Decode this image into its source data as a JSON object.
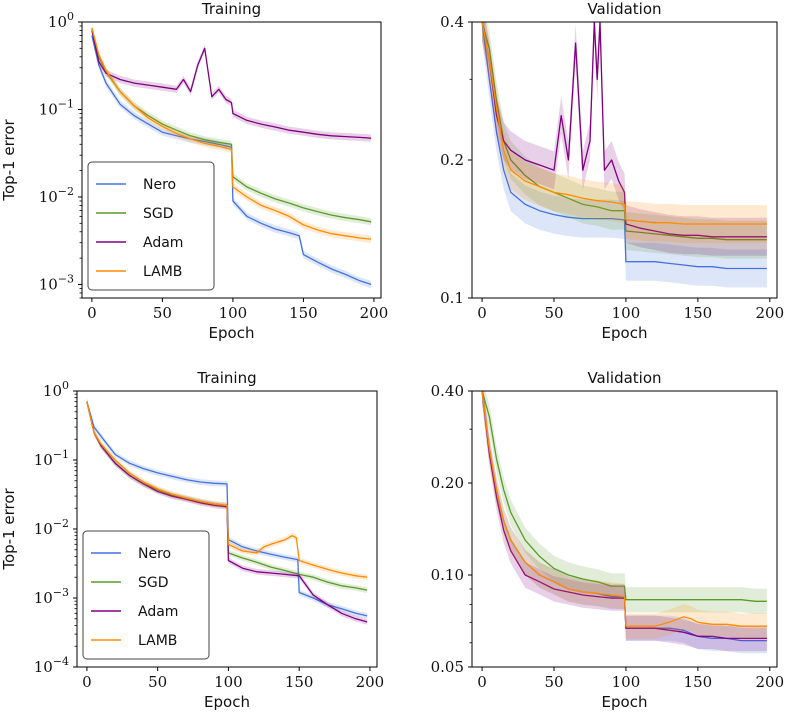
{
  "colors": {
    "Nero": "#4472e0",
    "SGD": "#5a9a2a",
    "Adam": "#800080",
    "LAMB": "#ff8c00"
  },
  "legend_entries": [
    "Nero",
    "SGD",
    "Adam",
    "LAMB"
  ],
  "chart_data": [
    {
      "type": "line",
      "title": "Training",
      "xlabel": "Epoch",
      "ylabel": "Top-1 error",
      "yscale": "log",
      "xlim": [
        -7,
        205
      ],
      "ylim": [
        0.0007,
        1.0
      ],
      "xticks": [
        0,
        50,
        100,
        150,
        200
      ],
      "xtick_labels": [
        "0",
        "50",
        "100",
        "150",
        "200"
      ],
      "yticks": [
        0.001,
        0.01,
        0.1,
        1.0
      ],
      "ytick_labels": [
        {
          "base": "10",
          "exp": "−3"
        },
        {
          "base": "10",
          "exp": "−2"
        },
        {
          "base": "10",
          "exp": "−1"
        },
        {
          "base": "10",
          "exp": "0"
        }
      ],
      "legend": "lower-left",
      "series": [
        {
          "name": "Nero",
          "x": [
            0,
            5,
            10,
            20,
            30,
            40,
            50,
            60,
            70,
            80,
            90,
            99,
            100,
            110,
            120,
            130,
            140,
            147,
            150,
            160,
            170,
            180,
            190,
            198
          ],
          "y": [
            0.7,
            0.32,
            0.2,
            0.115,
            0.085,
            0.068,
            0.055,
            0.05,
            0.046,
            0.043,
            0.04,
            0.037,
            0.009,
            0.006,
            0.005,
            0.0043,
            0.0039,
            0.0036,
            0.0022,
            0.0018,
            0.0015,
            0.0013,
            0.0011,
            0.001
          ]
        },
        {
          "name": "SGD",
          "x": [
            0,
            5,
            10,
            20,
            30,
            40,
            50,
            60,
            70,
            80,
            90,
            99,
            100,
            110,
            120,
            130,
            140,
            150,
            160,
            170,
            180,
            190,
            198
          ],
          "y": [
            0.85,
            0.4,
            0.27,
            0.16,
            0.11,
            0.085,
            0.068,
            0.058,
            0.05,
            0.045,
            0.042,
            0.04,
            0.017,
            0.013,
            0.011,
            0.0095,
            0.0085,
            0.0075,
            0.0068,
            0.0062,
            0.0058,
            0.0055,
            0.0052
          ]
        },
        {
          "name": "Adam",
          "x": [
            0,
            5,
            10,
            20,
            30,
            40,
            50,
            60,
            65,
            70,
            75,
            80,
            85,
            90,
            95,
            99,
            100,
            110,
            120,
            130,
            140,
            150,
            160,
            170,
            180,
            190,
            198
          ],
          "y": [
            0.8,
            0.35,
            0.26,
            0.22,
            0.2,
            0.19,
            0.18,
            0.17,
            0.22,
            0.16,
            0.32,
            0.5,
            0.14,
            0.17,
            0.13,
            0.12,
            0.09,
            0.075,
            0.068,
            0.063,
            0.058,
            0.055,
            0.052,
            0.05,
            0.049,
            0.048,
            0.047
          ]
        },
        {
          "name": "LAMB",
          "x": [
            0,
            5,
            10,
            20,
            30,
            40,
            50,
            60,
            70,
            80,
            90,
            99,
            100,
            110,
            120,
            130,
            140,
            150,
            160,
            170,
            180,
            190,
            198
          ],
          "y": [
            0.85,
            0.42,
            0.28,
            0.16,
            0.11,
            0.08,
            0.064,
            0.053,
            0.046,
            0.041,
            0.038,
            0.035,
            0.013,
            0.01,
            0.008,
            0.007,
            0.006,
            0.0048,
            0.0042,
            0.0038,
            0.0036,
            0.0034,
            0.0033
          ]
        }
      ]
    },
    {
      "type": "line",
      "title": "Validation",
      "xlabel": "Epoch",
      "ylabel": "",
      "yscale": "log",
      "xlim": [
        -7,
        205
      ],
      "ylim": [
        0.1,
        0.4
      ],
      "xticks": [
        0,
        50,
        100,
        150,
        200
      ],
      "xtick_labels": [
        "0",
        "50",
        "100",
        "150",
        "200"
      ],
      "yticks": [
        0.1,
        0.2,
        0.4
      ],
      "ytick_labels": [
        "0.1",
        "0.2",
        "0.4"
      ],
      "series": [
        {
          "name": "Nero",
          "x": [
            0,
            5,
            10,
            15,
            20,
            30,
            40,
            50,
            60,
            70,
            80,
            90,
            99,
            100,
            110,
            120,
            130,
            140,
            150,
            160,
            170,
            180,
            190,
            198
          ],
          "y": [
            0.4,
            0.3,
            0.23,
            0.19,
            0.17,
            0.16,
            0.155,
            0.152,
            0.15,
            0.149,
            0.149,
            0.149,
            0.148,
            0.12,
            0.12,
            0.12,
            0.119,
            0.118,
            0.117,
            0.117,
            0.116,
            0.116,
            0.116,
            0.116
          ]
        },
        {
          "name": "SGD",
          "x": [
            0,
            5,
            10,
            15,
            20,
            30,
            40,
            50,
            60,
            70,
            80,
            90,
            99,
            100,
            110,
            120,
            130,
            140,
            150,
            160,
            170,
            180,
            190,
            198
          ],
          "y": [
            0.4,
            0.35,
            0.27,
            0.22,
            0.2,
            0.185,
            0.175,
            0.17,
            0.165,
            0.16,
            0.158,
            0.155,
            0.155,
            0.14,
            0.139,
            0.138,
            0.137,
            0.136,
            0.135,
            0.135,
            0.134,
            0.134,
            0.134,
            0.134
          ]
        },
        {
          "name": "Adam",
          "x": [
            0,
            5,
            10,
            15,
            20,
            30,
            40,
            50,
            55,
            60,
            65,
            70,
            75,
            78,
            80,
            82,
            85,
            90,
            95,
            99,
            100,
            110,
            120,
            130,
            140,
            150,
            160,
            170,
            180,
            190,
            198
          ],
          "y": [
            0.4,
            0.33,
            0.25,
            0.22,
            0.21,
            0.2,
            0.195,
            0.19,
            0.25,
            0.2,
            0.36,
            0.19,
            0.22,
            0.4,
            0.3,
            0.4,
            0.19,
            0.2,
            0.18,
            0.17,
            0.145,
            0.142,
            0.14,
            0.138,
            0.137,
            0.137,
            0.136,
            0.136,
            0.136,
            0.136,
            0.136
          ]
        },
        {
          "name": "LAMB",
          "x": [
            0,
            5,
            10,
            15,
            20,
            30,
            40,
            50,
            60,
            70,
            80,
            90,
            99,
            100,
            110,
            120,
            130,
            140,
            150,
            160,
            170,
            180,
            190,
            198
          ],
          "y": [
            0.4,
            0.33,
            0.26,
            0.21,
            0.19,
            0.18,
            0.175,
            0.17,
            0.168,
            0.165,
            0.163,
            0.162,
            0.16,
            0.148,
            0.147,
            0.146,
            0.146,
            0.145,
            0.145,
            0.145,
            0.145,
            0.145,
            0.145,
            0.145
          ]
        }
      ]
    },
    {
      "type": "line",
      "title": "Training",
      "xlabel": "Epoch",
      "ylabel": "Top-1 error",
      "yscale": "log",
      "xlim": [
        -7,
        205
      ],
      "ylim": [
        0.0001,
        1.0
      ],
      "xticks": [
        0,
        50,
        100,
        150,
        200
      ],
      "xtick_labels": [
        "0",
        "50",
        "100",
        "150",
        "200"
      ],
      "yticks": [
        0.0001,
        0.001,
        0.01,
        0.1,
        1.0
      ],
      "ytick_labels": [
        {
          "base": "10",
          "exp": "−4"
        },
        {
          "base": "10",
          "exp": "−3"
        },
        {
          "base": "10",
          "exp": "−2"
        },
        {
          "base": "10",
          "exp": "−1"
        },
        {
          "base": "10",
          "exp": "0"
        }
      ],
      "legend": "lower-left",
      "series": [
        {
          "name": "Nero",
          "x": [
            0,
            5,
            10,
            20,
            30,
            40,
            50,
            60,
            70,
            80,
            90,
            99,
            100,
            110,
            120,
            130,
            140,
            149,
            150,
            160,
            170,
            180,
            190,
            198
          ],
          "y": [
            0.7,
            0.3,
            0.22,
            0.12,
            0.09,
            0.075,
            0.065,
            0.058,
            0.052,
            0.048,
            0.046,
            0.045,
            0.007,
            0.0055,
            0.0048,
            0.0043,
            0.0039,
            0.0036,
            0.0012,
            0.001,
            0.0008,
            0.0007,
            0.0006,
            0.00055
          ]
        },
        {
          "name": "SGD",
          "x": [
            0,
            5,
            10,
            20,
            30,
            40,
            50,
            60,
            70,
            80,
            90,
            99,
            100,
            110,
            120,
            130,
            140,
            150,
            160,
            170,
            180,
            190,
            198
          ],
          "y": [
            0.7,
            0.25,
            0.16,
            0.09,
            0.06,
            0.045,
            0.037,
            0.031,
            0.028,
            0.025,
            0.023,
            0.022,
            0.0045,
            0.0038,
            0.0033,
            0.0028,
            0.0025,
            0.0022,
            0.002,
            0.0017,
            0.0015,
            0.0014,
            0.0013
          ]
        },
        {
          "name": "Adam",
          "x": [
            0,
            5,
            10,
            20,
            30,
            40,
            50,
            60,
            70,
            80,
            90,
            99,
            100,
            110,
            120,
            130,
            140,
            150,
            160,
            170,
            180,
            190,
            198
          ],
          "y": [
            0.7,
            0.25,
            0.16,
            0.09,
            0.06,
            0.045,
            0.035,
            0.03,
            0.027,
            0.024,
            0.022,
            0.021,
            0.0035,
            0.0027,
            0.0024,
            0.0023,
            0.0022,
            0.0021,
            0.0011,
            0.0008,
            0.0006,
            0.0005,
            0.00045
          ]
        },
        {
          "name": "LAMB",
          "x": [
            0,
            5,
            10,
            20,
            30,
            40,
            50,
            60,
            70,
            80,
            90,
            99,
            100,
            110,
            120,
            125,
            130,
            140,
            145,
            148,
            150,
            160,
            170,
            180,
            190,
            198
          ],
          "y": [
            0.7,
            0.25,
            0.17,
            0.1,
            0.065,
            0.048,
            0.038,
            0.032,
            0.028,
            0.025,
            0.023,
            0.022,
            0.006,
            0.0048,
            0.0045,
            0.0055,
            0.006,
            0.007,
            0.008,
            0.0075,
            0.0035,
            0.003,
            0.0026,
            0.0023,
            0.0021,
            0.002
          ]
        }
      ]
    },
    {
      "type": "line",
      "title": "Validation",
      "xlabel": "Epoch",
      "ylabel": "",
      "yscale": "log",
      "xlim": [
        -7,
        205
      ],
      "ylim": [
        0.05,
        0.4
      ],
      "xticks": [
        0,
        50,
        100,
        150,
        200
      ],
      "xtick_labels": [
        "0",
        "50",
        "100",
        "150",
        "200"
      ],
      "yticks": [
        0.05,
        0.1,
        0.2,
        0.4
      ],
      "ytick_labels": [
        "0.05",
        "0.10",
        "0.20",
        "0.40"
      ],
      "series": [
        {
          "name": "Nero",
          "x": [
            0,
            5,
            10,
            15,
            20,
            30,
            40,
            50,
            60,
            70,
            80,
            90,
            99,
            100,
            110,
            120,
            130,
            140,
            150,
            160,
            170,
            180,
            190,
            198
          ],
          "y": [
            0.4,
            0.26,
            0.19,
            0.15,
            0.13,
            0.11,
            0.1,
            0.095,
            0.09,
            0.088,
            0.087,
            0.085,
            0.085,
            0.067,
            0.067,
            0.067,
            0.067,
            0.066,
            0.063,
            0.062,
            0.062,
            0.061,
            0.061,
            0.061
          ]
        },
        {
          "name": "SGD",
          "x": [
            0,
            5,
            10,
            15,
            20,
            30,
            40,
            50,
            60,
            70,
            80,
            90,
            99,
            100,
            110,
            120,
            130,
            140,
            150,
            160,
            170,
            180,
            190,
            198
          ],
          "y": [
            0.4,
            0.33,
            0.24,
            0.19,
            0.16,
            0.13,
            0.115,
            0.105,
            0.1,
            0.097,
            0.095,
            0.092,
            0.092,
            0.083,
            0.083,
            0.083,
            0.083,
            0.083,
            0.083,
            0.083,
            0.083,
            0.083,
            0.082,
            0.082
          ]
        },
        {
          "name": "Adam",
          "x": [
            0,
            5,
            10,
            15,
            20,
            30,
            40,
            50,
            60,
            70,
            80,
            90,
            99,
            100,
            110,
            120,
            130,
            140,
            150,
            160,
            170,
            180,
            190,
            198
          ],
          "y": [
            0.4,
            0.25,
            0.18,
            0.14,
            0.12,
            0.1,
            0.095,
            0.09,
            0.088,
            0.086,
            0.085,
            0.084,
            0.084,
            0.067,
            0.067,
            0.067,
            0.066,
            0.065,
            0.063,
            0.063,
            0.062,
            0.062,
            0.062,
            0.062
          ]
        },
        {
          "name": "LAMB",
          "x": [
            0,
            5,
            10,
            15,
            20,
            30,
            40,
            50,
            60,
            70,
            80,
            90,
            99,
            100,
            110,
            120,
            130,
            140,
            145,
            150,
            160,
            170,
            180,
            190,
            198
          ],
          "y": [
            0.4,
            0.26,
            0.19,
            0.15,
            0.13,
            0.11,
            0.1,
            0.095,
            0.09,
            0.088,
            0.087,
            0.086,
            0.085,
            0.068,
            0.068,
            0.068,
            0.07,
            0.073,
            0.072,
            0.07,
            0.069,
            0.069,
            0.068,
            0.068,
            0.068
          ]
        }
      ]
    }
  ]
}
